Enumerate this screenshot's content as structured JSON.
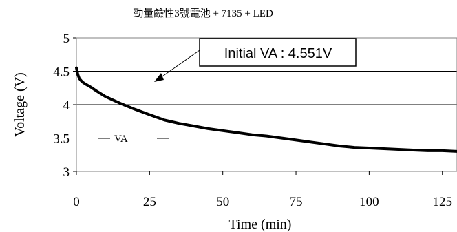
{
  "chart_data": {
    "type": "line",
    "title": "勁量鹼性3號電池 + 7135 + LED",
    "xlabel": "Time (min)",
    "ylabel": "Voltage (V)",
    "xlim": [
      0,
      130
    ],
    "ylim": [
      3,
      5
    ],
    "x_ticks": [
      "0",
      "25",
      "50",
      "75",
      "100",
      "125"
    ],
    "y_ticks": [
      "3",
      "3.5",
      "4",
      "4.5",
      "5"
    ],
    "x_tick_values": [
      0,
      25,
      50,
      75,
      100,
      125
    ],
    "y_tick_values": [
      3,
      3.5,
      4,
      4.5,
      5
    ],
    "grid": "horizontal",
    "series": [
      {
        "name": "VA",
        "color": "#000000",
        "x": [
          0,
          0.5,
          1,
          2,
          3,
          5,
          7,
          10,
          15,
          20,
          25,
          30,
          35,
          40,
          45,
          50,
          55,
          60,
          65,
          70,
          75,
          80,
          85,
          90,
          95,
          100,
          105,
          110,
          115,
          120,
          125,
          130
        ],
        "y": [
          4.551,
          4.45,
          4.39,
          4.34,
          4.31,
          4.26,
          4.2,
          4.12,
          4.02,
          3.93,
          3.85,
          3.77,
          3.72,
          3.68,
          3.64,
          3.61,
          3.58,
          3.55,
          3.53,
          3.5,
          3.47,
          3.44,
          3.41,
          3.38,
          3.36,
          3.35,
          3.34,
          3.33,
          3.32,
          3.31,
          3.31,
          3.3
        ]
      }
    ],
    "annotation": {
      "text": "Initial VA : 4.551V"
    }
  }
}
